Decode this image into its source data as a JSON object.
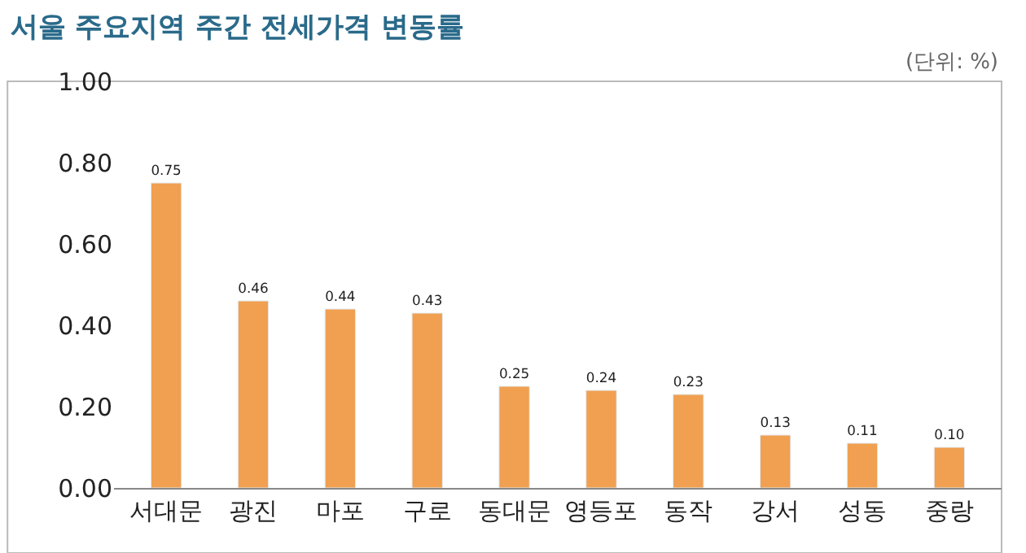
{
  "chart_data": {
    "type": "bar",
    "title": "서울 주요지역 주간 전세가격 변동률",
    "annotations": [
      "(단위: %)"
    ],
    "categories": [
      "서대문",
      "광진",
      "마포",
      "구로",
      "동대문",
      "영등포",
      "동작",
      "강서",
      "성동",
      "중랑"
    ],
    "values": [
      0.75,
      0.46,
      0.44,
      0.43,
      0.25,
      0.24,
      0.23,
      0.13,
      0.11,
      0.1
    ],
    "value_labels": [
      "0.75",
      "0.46",
      "0.44",
      "0.43",
      "0.25",
      "0.24",
      "0.23",
      "0.13",
      "0.11",
      "0.10"
    ],
    "color": "#f0a050",
    "ylim": [
      0,
      1.0
    ],
    "yticks": [
      {
        "value": 0,
        "label": "0.00"
      },
      {
        "value": 0.2,
        "label": "0.20"
      },
      {
        "value": 0.4,
        "label": "0.40"
      },
      {
        "value": 0.6,
        "label": "0.60"
      },
      {
        "value": 0.8,
        "label": "0.80"
      },
      {
        "value": 1.0,
        "label": "1.00"
      }
    ],
    "grid": false
  }
}
